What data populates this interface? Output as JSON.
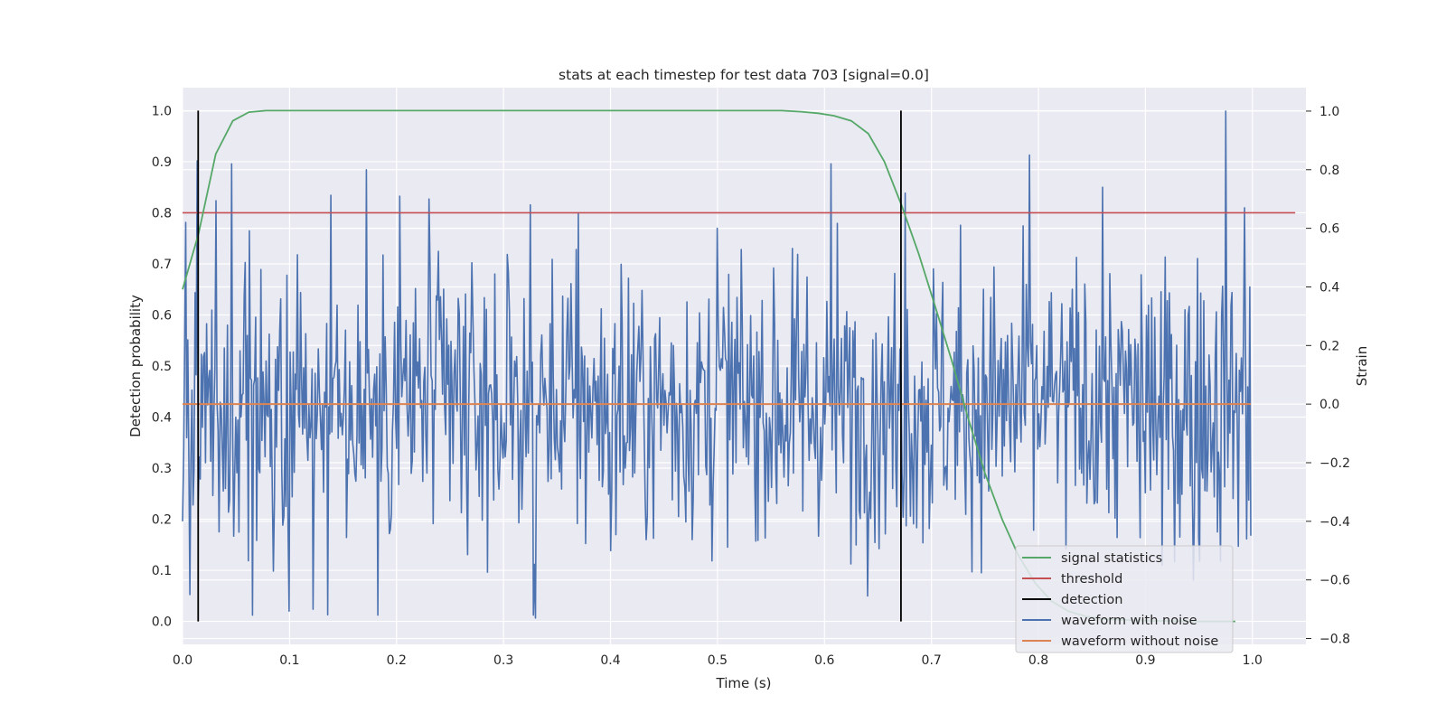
{
  "chart_data": {
    "type": "line",
    "title": "stats at each timestep for test data 703 [signal=0.0]",
    "xlabel": "Time (s)",
    "ylabel": "Detection probability",
    "y2label": "Strain",
    "xlim": [
      0.0,
      1.05
    ],
    "ylim": [
      -0.045,
      1.045
    ],
    "y2lim": [
      -0.82,
      1.08
    ],
    "xticks": [
      "0.0",
      "0.1",
      "0.2",
      "0.3",
      "0.4",
      "0.5",
      "0.6",
      "0.7",
      "0.8",
      "0.9",
      "1.0"
    ],
    "yticks": [
      "0.0",
      "0.1",
      "0.2",
      "0.3",
      "0.4",
      "0.5",
      "0.6",
      "0.7",
      "0.8",
      "0.9",
      "1.0"
    ],
    "y2ticks": [
      "−0.8",
      "−0.6",
      "−0.4",
      "−0.2",
      "0.0",
      "0.2",
      "0.4",
      "0.6",
      "0.8",
      "1.0"
    ],
    "grid": true,
    "legend_position": "lower-right",
    "colors": {
      "signal_statistics": "#55a868",
      "threshold": "#c44e52",
      "detection": "#000000",
      "waveform_with_noise": "#4c72b0",
      "waveform_without_noise": "#dd8452",
      "plot_background": "#eaeaf2",
      "grid": "#ffffff"
    },
    "legend": [
      "signal statistics",
      "threshold",
      "detection",
      "waveform with noise",
      "waveform without noise"
    ],
    "series": [
      {
        "name": "signal statistics",
        "axis": "left",
        "x": [
          0.0,
          0.015,
          0.031,
          0.047,
          0.062,
          0.078,
          0.094,
          0.2,
          0.3,
          0.4,
          0.5,
          0.56,
          0.578,
          0.594,
          0.609,
          0.625,
          0.641,
          0.656,
          0.672,
          0.688,
          0.703,
          0.719,
          0.734,
          0.75,
          0.766,
          0.781,
          0.797,
          0.812,
          0.828,
          0.844,
          0.859,
          0.875,
          0.891,
          0.906,
          0.922,
          0.938,
          0.953,
          0.969,
          0.984
        ],
        "y": [
          0.65,
          0.76,
          0.915,
          0.98,
          0.997,
          1.0,
          1.0,
          1.0,
          1.0,
          1.0,
          1.0,
          1.0,
          0.998,
          0.995,
          0.99,
          0.98,
          0.955,
          0.9,
          0.815,
          0.72,
          0.62,
          0.51,
          0.4,
          0.29,
          0.2,
          0.13,
          0.075,
          0.04,
          0.02,
          0.01,
          0.005,
          0.003,
          0.002,
          0.001,
          0.001,
          0.0,
          0.0,
          0.0,
          0.0
        ]
      },
      {
        "name": "threshold",
        "axis": "left",
        "x": [
          0.0,
          1.04
        ],
        "y": [
          0.8,
          0.8
        ]
      },
      {
        "name": "detection",
        "axis": "left",
        "type": "vlines",
        "x": [
          0.0146,
          0.6715
        ],
        "y": [
          0.0,
          1.0
        ]
      },
      {
        "name": "waveform with noise",
        "axis": "right",
        "x_start": 0.0,
        "x_end": 0.9985,
        "key_points_x": [
          0.0,
          0.003,
          0.007,
          0.013,
          0.014,
          0.021,
          0.046,
          0.065,
          0.085,
          0.122,
          0.172,
          0.183,
          0.203,
          0.23,
          0.328,
          0.33,
          0.37,
          0.4,
          0.5,
          0.606,
          0.668,
          0.675,
          0.792,
          0.86,
          0.916,
          0.945,
          0.975,
          0.993,
          0.995,
          0.998
        ],
        "key_points_y": [
          -0.4,
          0.62,
          -0.65,
          0.1,
          0.83,
          -0.2,
          0.82,
          -0.72,
          -0.57,
          -0.7,
          0.8,
          -0.72,
          0.71,
          0.7,
          -0.72,
          -0.73,
          0.65,
          -0.5,
          0.6,
          0.82,
          -0.35,
          0.72,
          0.85,
          0.74,
          -0.55,
          -0.6,
          1.0,
          0.67,
          -0.46,
          0.4
        ],
        "amplitude_range": [
          -0.74,
          1.0
        ]
      },
      {
        "name": "waveform without noise",
        "axis": "right",
        "x": [
          0.0,
          0.9985
        ],
        "y": [
          0.0,
          0.0
        ]
      }
    ]
  }
}
